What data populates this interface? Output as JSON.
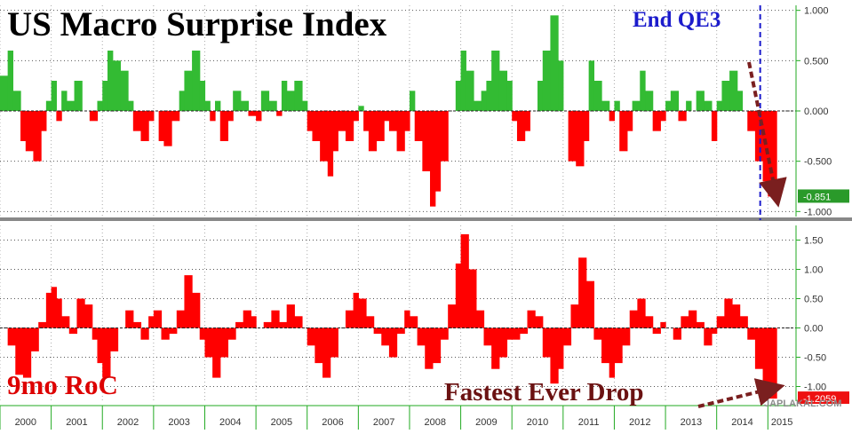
{
  "chart_data": [
    {
      "type": "area",
      "title": "US Macro Surprise Index",
      "annotation": "End QE3",
      "ylim": [
        -1.05,
        1.05
      ],
      "y_ticks": [
        "1.000",
        "0.500",
        "0.000",
        "-0.500",
        "-1.000"
      ],
      "last_value_label": "-0.851",
      "positive_color": "#33bb33",
      "negative_color": "#ff0000",
      "x": [
        2000.0,
        2000.15,
        2000.25,
        2000.4,
        2000.5,
        2000.65,
        2000.8,
        2000.9,
        2001.0,
        2001.1,
        2001.2,
        2001.3,
        2001.45,
        2001.6,
        2001.75,
        2001.9,
        2002.0,
        2002.1,
        2002.2,
        2002.35,
        2002.5,
        2002.6,
        2002.75,
        2002.9,
        2003.0,
        2003.1,
        2003.2,
        2003.35,
        2003.5,
        2003.6,
        2003.75,
        2003.9,
        2004.0,
        2004.1,
        2004.2,
        2004.3,
        2004.45,
        2004.55,
        2004.7,
        2004.85,
        2005.0,
        2005.1,
        2005.25,
        2005.4,
        2005.5,
        2005.6,
        2005.75,
        2005.9,
        2006.0,
        2006.1,
        2006.25,
        2006.4,
        2006.5,
        2006.6,
        2006.75,
        2006.9,
        2007.0,
        2007.1,
        2007.2,
        2007.35,
        2007.5,
        2007.6,
        2007.75,
        2007.9,
        2008.0,
        2008.1,
        2008.25,
        2008.4,
        2008.5,
        2008.6,
        2008.75,
        2008.9,
        2009.0,
        2009.1,
        2009.25,
        2009.4,
        2009.5,
        2009.6,
        2009.75,
        2009.9,
        2010.0,
        2010.1,
        2010.25,
        2010.35,
        2010.5,
        2010.6,
        2010.75,
        2010.9,
        2011.0,
        2011.1,
        2011.25,
        2011.4,
        2011.5,
        2011.6,
        2011.75,
        2011.9,
        2012.0,
        2012.1,
        2012.25,
        2012.35,
        2012.5,
        2012.6,
        2012.75,
        2012.9,
        2013.0,
        2013.1,
        2013.25,
        2013.4,
        2013.5,
        2013.6,
        2013.75,
        2013.9,
        2014.0,
        2014.1,
        2014.25,
        2014.4,
        2014.5,
        2014.6,
        2014.75,
        2014.9,
        2015.0,
        2015.1
      ],
      "values": [
        0.35,
        0.6,
        0.2,
        -0.3,
        -0.4,
        -0.5,
        -0.2,
        0.1,
        0.3,
        -0.1,
        0.2,
        0.1,
        0.3,
        0.0,
        -0.1,
        0.1,
        0.3,
        0.6,
        0.5,
        0.4,
        0.1,
        -0.2,
        -0.3,
        -0.1,
        0.0,
        -0.3,
        -0.35,
        -0.1,
        0.2,
        0.4,
        0.6,
        0.3,
        0.1,
        -0.1,
        0.1,
        -0.3,
        -0.1,
        0.2,
        0.1,
        -0.05,
        -0.1,
        0.2,
        0.1,
        -0.05,
        0.3,
        0.2,
        0.3,
        0.1,
        -0.2,
        -0.3,
        -0.5,
        -0.65,
        -0.4,
        -0.2,
        -0.3,
        -0.1,
        0.05,
        -0.2,
        -0.4,
        -0.3,
        -0.1,
        -0.2,
        -0.4,
        -0.2,
        0.2,
        -0.3,
        -0.6,
        -0.95,
        -0.8,
        -0.5,
        0.0,
        0.3,
        0.6,
        0.4,
        0.1,
        0.2,
        0.3,
        0.6,
        0.4,
        0.3,
        -0.1,
        -0.3,
        -0.2,
        0.0,
        0.3,
        0.6,
        0.95,
        0.5,
        0.0,
        -0.5,
        -0.55,
        -0.3,
        0.5,
        0.3,
        0.1,
        -0.1,
        0.1,
        -0.4,
        -0.2,
        0.1,
        0.4,
        0.2,
        -0.2,
        -0.1,
        0.1,
        0.2,
        -0.1,
        0.1,
        0.0,
        0.2,
        0.1,
        -0.3,
        0.1,
        0.3,
        0.4,
        0.2,
        0.0,
        -0.2,
        -0.5,
        -0.7,
        -0.851,
        -0.851
      ]
    },
    {
      "type": "area",
      "title": "9mo RoC",
      "annotation": "Fastest Ever Drop",
      "ylim": [
        -1.25,
        1.75
      ],
      "y_ticks": [
        "1.50",
        "1.00",
        "0.50",
        "0.00",
        "-0.50",
        "-1.00"
      ],
      "last_value_label": "-1.2059",
      "positive_color": "#ff0000",
      "negative_color": "#ff0000",
      "x": [
        2000.0,
        2000.15,
        2000.3,
        2000.45,
        2000.6,
        2000.75,
        2000.9,
        2001.0,
        2001.1,
        2001.2,
        2001.35,
        2001.5,
        2001.65,
        2001.8,
        2001.9,
        2002.0,
        2002.15,
        2002.3,
        2002.45,
        2002.6,
        2002.75,
        2002.9,
        2003.0,
        2003.15,
        2003.3,
        2003.45,
        2003.6,
        2003.75,
        2003.9,
        2004.0,
        2004.15,
        2004.3,
        2004.45,
        2004.6,
        2004.75,
        2004.9,
        2005.0,
        2005.15,
        2005.3,
        2005.45,
        2005.6,
        2005.75,
        2005.9,
        2006.0,
        2006.15,
        2006.3,
        2006.45,
        2006.6,
        2006.75,
        2006.9,
        2007.0,
        2007.15,
        2007.3,
        2007.45,
        2007.6,
        2007.75,
        2007.9,
        2008.0,
        2008.15,
        2008.3,
        2008.45,
        2008.6,
        2008.75,
        2008.9,
        2009.0,
        2009.15,
        2009.3,
        2009.45,
        2009.6,
        2009.75,
        2009.9,
        2010.0,
        2010.15,
        2010.3,
        2010.45,
        2010.6,
        2010.75,
        2010.9,
        2011.0,
        2011.15,
        2011.3,
        2011.45,
        2011.6,
        2011.75,
        2011.9,
        2012.0,
        2012.15,
        2012.3,
        2012.45,
        2012.6,
        2012.75,
        2012.9,
        2013.0,
        2013.15,
        2013.3,
        2013.45,
        2013.6,
        2013.75,
        2013.9,
        2014.0,
        2014.15,
        2014.3,
        2014.45,
        2014.6,
        2014.75,
        2014.9,
        2015.0,
        2015.1
      ],
      "values": [
        0.0,
        -0.3,
        -0.8,
        -0.85,
        -0.4,
        0.1,
        0.6,
        0.7,
        0.5,
        0.2,
        -0.1,
        0.5,
        0.4,
        -0.2,
        -0.6,
        -0.85,
        -0.4,
        0.0,
        0.3,
        0.1,
        -0.2,
        0.2,
        0.3,
        -0.2,
        -0.1,
        0.3,
        0.9,
        0.6,
        -0.2,
        -0.5,
        -0.85,
        -0.5,
        -0.2,
        0.1,
        0.3,
        0.2,
        0.0,
        0.1,
        0.3,
        0.1,
        0.4,
        0.2,
        0.0,
        -0.3,
        -0.6,
        -0.85,
        -0.5,
        0.0,
        0.3,
        0.6,
        0.5,
        0.2,
        -0.1,
        -0.3,
        -0.5,
        -0.1,
        0.3,
        0.2,
        -0.3,
        -0.7,
        -0.6,
        -0.2,
        0.4,
        1.1,
        1.6,
        1.0,
        0.3,
        -0.3,
        -0.7,
        -0.5,
        -0.2,
        -0.2,
        -0.1,
        0.3,
        0.2,
        -0.5,
        -0.95,
        -0.7,
        -0.3,
        0.4,
        1.2,
        0.8,
        -0.2,
        -0.6,
        -0.85,
        -0.6,
        -0.3,
        0.3,
        0.5,
        0.2,
        -0.1,
        0.1,
        0.0,
        -0.2,
        0.2,
        0.3,
        0.1,
        -0.3,
        -0.1,
        0.2,
        0.5,
        0.4,
        0.2,
        -0.2,
        -0.7,
        -1.0,
        -1.2059,
        -1.2059
      ]
    }
  ],
  "x_axis": {
    "labels": [
      "2000",
      "2001",
      "2002",
      "2003",
      "2004",
      "2005",
      "2006",
      "2007",
      "2008",
      "2009",
      "2010",
      "2011",
      "2012",
      "2013",
      "2014",
      "2015"
    ],
    "range": [
      2000,
      2015.55
    ]
  },
  "qe3_end_x": 2014.85,
  "watermark": "JAPLAKAL.COM",
  "colors": {
    "title_black": "#000000",
    "qe3_blue": "#1c1ccc",
    "roc_title_red": "#dd0000",
    "drop_text": "#6b1212",
    "arrow_brown": "#7a1f1f",
    "badge_green": "#2a9a2a",
    "badge_red": "#ee1111",
    "axis_green": "#22aa22",
    "grid": "#555555"
  }
}
